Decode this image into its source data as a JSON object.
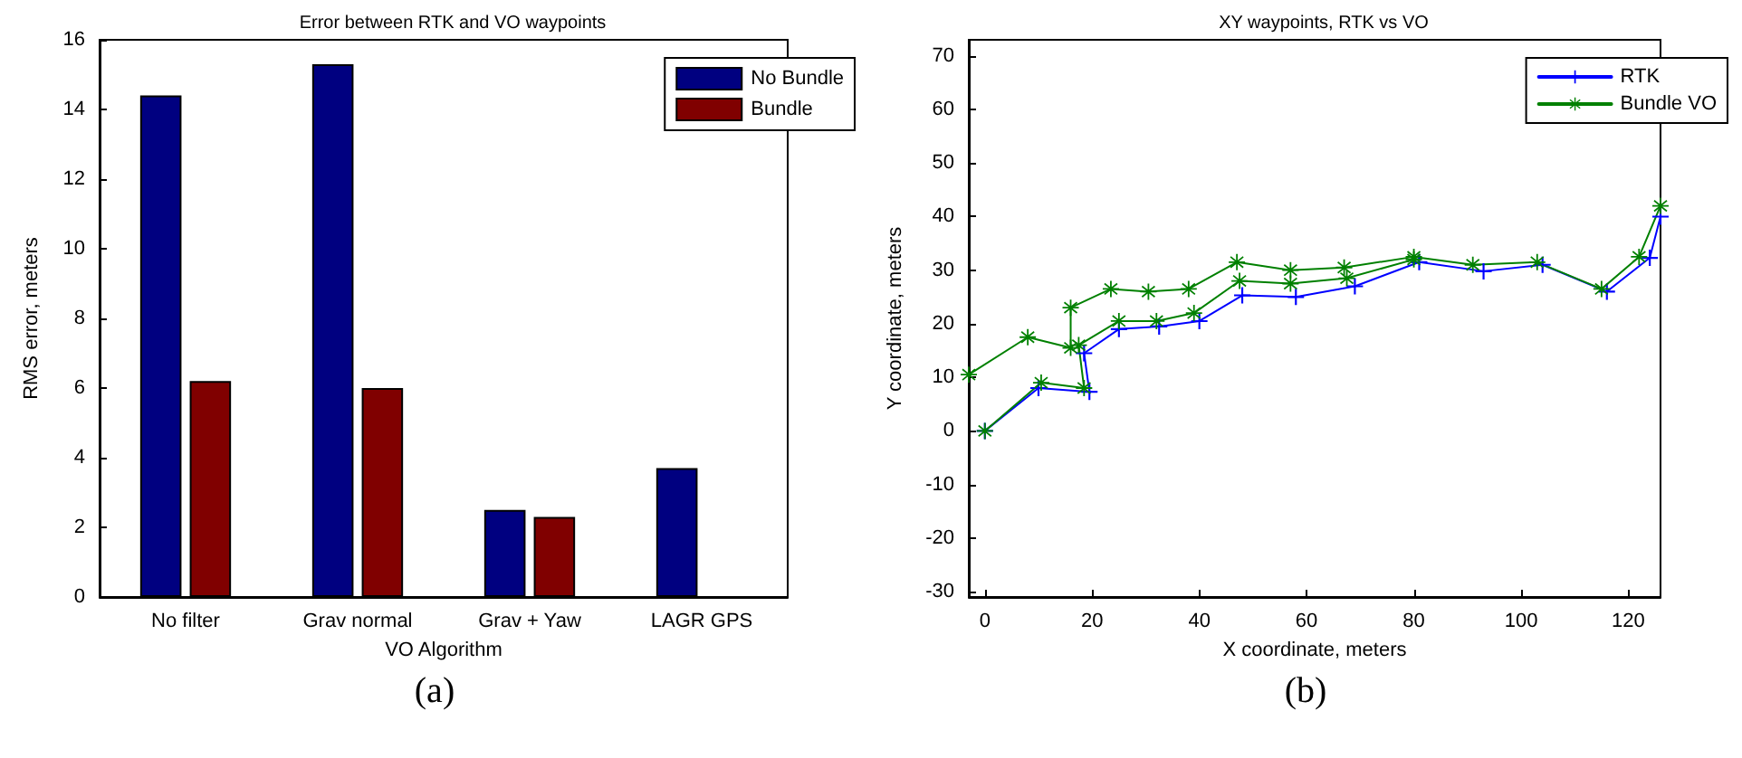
{
  "chart_data": [
    {
      "type": "bar",
      "title": "Error between RTK and VO waypoints",
      "xlabel": "VO Algorithm",
      "ylabel": "RMS error, meters",
      "categories": [
        "No filter",
        "Grav normal",
        "Grav + Yaw",
        "LAGR GPS"
      ],
      "series": [
        {
          "name": "No Bundle",
          "color": "#000080",
          "values": [
            14.4,
            15.3,
            2.5,
            3.7
          ]
        },
        {
          "name": "Bundle",
          "color": "#800000",
          "values": [
            6.2,
            6.0,
            2.3,
            null
          ]
        }
      ],
      "ylim": [
        0,
        16
      ],
      "yticks": [
        0,
        2,
        4,
        6,
        8,
        10,
        12,
        14,
        16
      ],
      "grid": false,
      "legend": "top right",
      "annotations": [
        "(a)"
      ]
    },
    {
      "type": "line",
      "title": "XY waypoints, RTK vs VO",
      "xlabel": "X coordinate, meters",
      "ylabel": "Y coordinate, meters",
      "series": [
        {
          "name": "RTK",
          "color": "#0000ff",
          "marker": "cross",
          "x": [
            0,
            10,
            19.5,
            18.5,
            25,
            32.5,
            40,
            48,
            58,
            69,
            81,
            93,
            104,
            116,
            124,
            126
          ],
          "values": [
            0,
            8,
            7.3,
            14.5,
            19,
            19.5,
            20.5,
            25.3,
            25,
            27,
            31.5,
            29.8,
            31,
            26,
            32.3,
            40
          ]
        },
        {
          "name": "Bundle VO",
          "color": "#008000",
          "marker": "star",
          "x": [
            -3,
            8,
            16,
            16,
            23.5,
            30.5,
            38,
            47,
            57,
            67,
            80,
            91,
            103,
            115,
            122,
            126
          ],
          "values": [
            10.5,
            17.5,
            15.5,
            23,
            26.5,
            26,
            26.5,
            31.5,
            30,
            30.5,
            32.5,
            31,
            31.5,
            26.5,
            32.5,
            42
          ]
        },
        {
          "color": "#008000",
          "marker": "star",
          "x": [
            0,
            10.5,
            18.5,
            17.5,
            25,
            32,
            39,
            47.5,
            57,
            67.5,
            80
          ],
          "values": [
            0,
            9,
            8,
            16,
            20.5,
            20.5,
            22,
            28,
            27.5,
            28.5,
            32
          ]
        }
      ],
      "xlim": [
        -3,
        126
      ],
      "xticks": [
        0,
        20,
        40,
        60,
        80,
        100,
        120
      ],
      "ylim": [
        -31,
        73
      ],
      "yticks": [
        -30,
        -20,
        -10,
        0,
        10,
        20,
        30,
        40,
        50,
        60,
        70
      ],
      "grid": false,
      "legend": "top right",
      "line_style": "solid",
      "annotations": [
        "(b)"
      ]
    }
  ]
}
